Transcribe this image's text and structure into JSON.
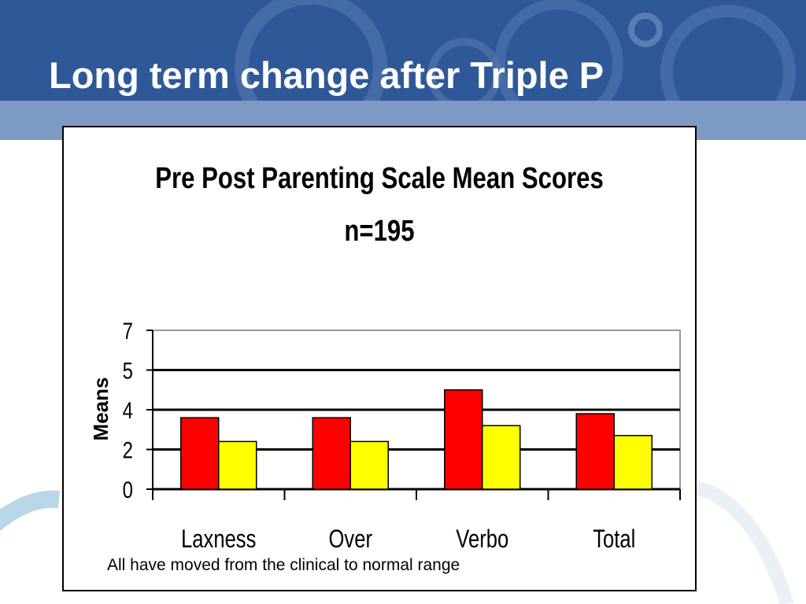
{
  "slide": {
    "title": "Long term change after Triple P",
    "caption": "All have moved from the clinical to normal range"
  },
  "colors": {
    "header": "#2f5898",
    "header_stripe": "#7d9ac4",
    "series_pre": "#ff0000",
    "series_post": "#ffff00"
  },
  "chart_data": {
    "type": "bar",
    "title": "Pre Post Parenting Scale Mean Scores",
    "subtitle": "n=195",
    "ylabel": "Means",
    "xlabel": "",
    "categories": [
      "Laxness",
      "Over",
      "Verbo",
      "Total"
    ],
    "y_tick_labels": [
      "0",
      "2",
      "4",
      "5",
      "7"
    ],
    "y_tick_values": [
      0,
      2,
      4,
      5,
      7
    ],
    "ylim": [
      0,
      7
    ],
    "series": [
      {
        "values": [
          3.6,
          3.6,
          4.5,
          3.8
        ],
        "color": "#ff0000"
      },
      {
        "values": [
          2.4,
          2.4,
          3.2,
          2.7
        ],
        "color": "#ffff00"
      }
    ],
    "grid": true,
    "legend": "none"
  }
}
